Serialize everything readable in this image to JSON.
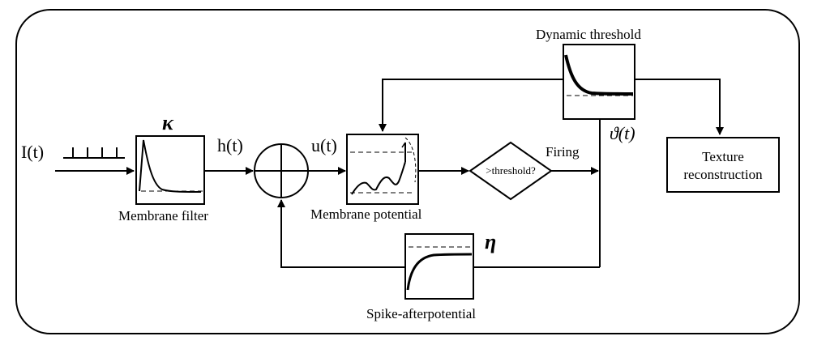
{
  "input_label": "I(t)",
  "kappa_symbol": "κ",
  "h_label": "h(t)",
  "u_label": "u(t)",
  "membrane_filter_label": "Membrane filter",
  "membrane_potential_label": "Membrane potential",
  "threshold_decision_label": ">threshold?",
  "firing_label": "Firing",
  "dynamic_threshold_label": "Dynamic threshold",
  "theta_label": "ϑ(t)",
  "texture_line1": "Texture",
  "texture_line2": "reconstruction",
  "eta_symbol": "η",
  "spike_afterpotential_label": "Spike-afterpotential"
}
